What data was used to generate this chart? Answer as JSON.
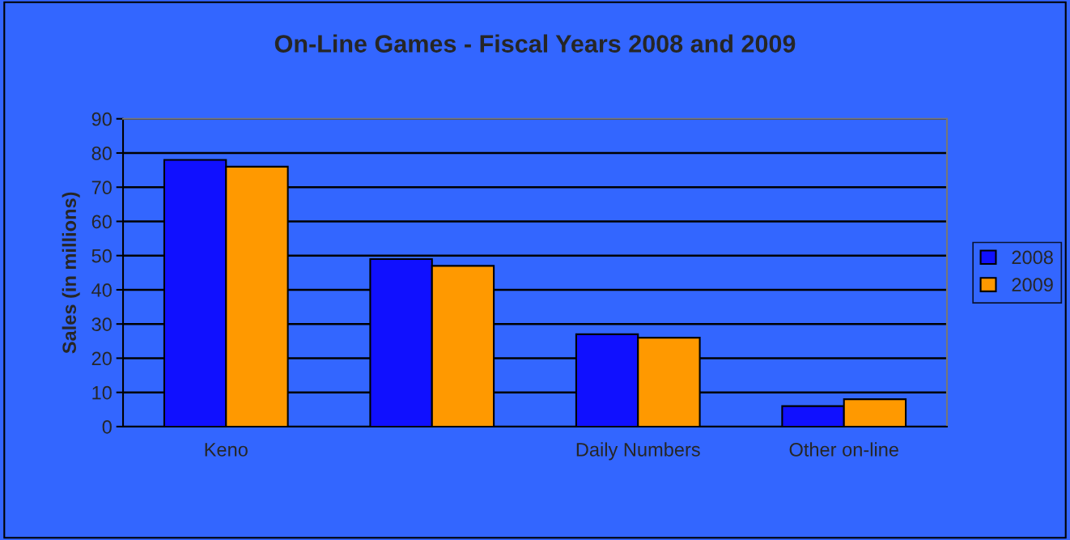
{
  "chart_data": {
    "type": "bar",
    "title": "On-Line Games - Fiscal Years 2008 and 2009",
    "ylabel": "Sales (in millions)",
    "categories": [
      "Keno",
      null,
      "Daily Numbers",
      "Other on-line"
    ],
    "series": [
      {
        "name": "2008",
        "color": "#1010ff",
        "values": [
          78,
          49,
          27,
          6
        ]
      },
      {
        "name": "2009",
        "color": "#ff9900",
        "values": [
          76,
          47,
          26,
          8
        ]
      }
    ],
    "ylim": [
      0,
      90
    ],
    "yticks": [
      0,
      10,
      20,
      30,
      40,
      50,
      60,
      70,
      80,
      90
    ],
    "grid": "y",
    "legend": "right"
  }
}
